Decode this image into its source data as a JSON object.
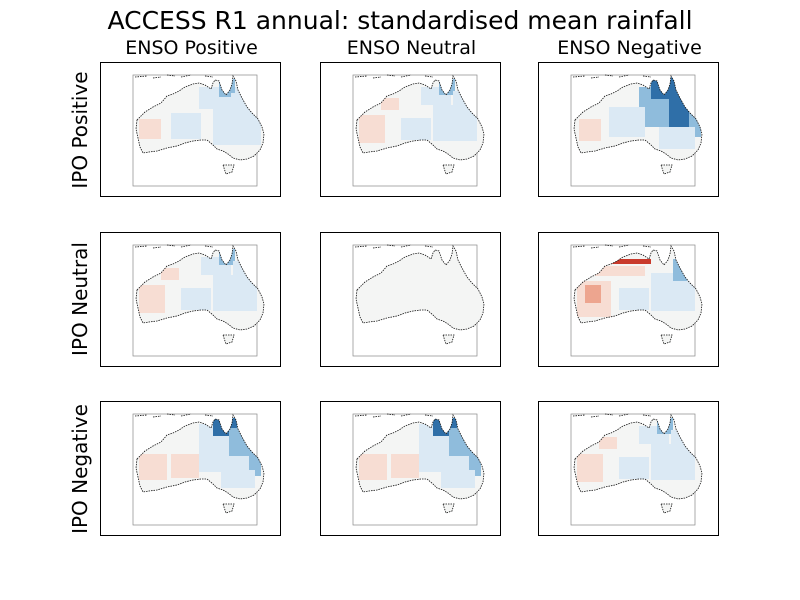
{
  "figure": {
    "title": "ACCESS R1 annual: standardised mean rainfall",
    "columns": [
      "ENSO Positive",
      "ENSO Neutral",
      "ENSO Negative"
    ],
    "rows": [
      "IPO Positive",
      "IPO Neutral",
      "IPO Negative"
    ]
  },
  "colors": {
    "wet_strong": "#2f6fa8",
    "wet_mid": "#8fbcdc",
    "wet_light": "#dbe9f4",
    "neutral": "#f4f5f4",
    "dry_light": "#f7ddd3",
    "dry_mid": "#eda58f",
    "dry_strong": "#c93a2c",
    "coast": "#111111",
    "frame_border": "#000000"
  },
  "panels": [
    {
      "row": 0,
      "col": 0,
      "pattern": "mild-wet-east"
    },
    {
      "row": 0,
      "col": 1,
      "pattern": "mild-mixed"
    },
    {
      "row": 0,
      "col": 2,
      "pattern": "strong-wet-north-east"
    },
    {
      "row": 1,
      "col": 0,
      "pattern": "mild-mixed"
    },
    {
      "row": 1,
      "col": 1,
      "pattern": "neutral"
    },
    {
      "row": 1,
      "col": 2,
      "pattern": "dry-north-west"
    },
    {
      "row": 2,
      "col": 0,
      "pattern": "wet-north-east"
    },
    {
      "row": 2,
      "col": 1,
      "pattern": "wet-north-east"
    },
    {
      "row": 2,
      "col": 2,
      "pattern": "mild-mixed"
    }
  ]
}
